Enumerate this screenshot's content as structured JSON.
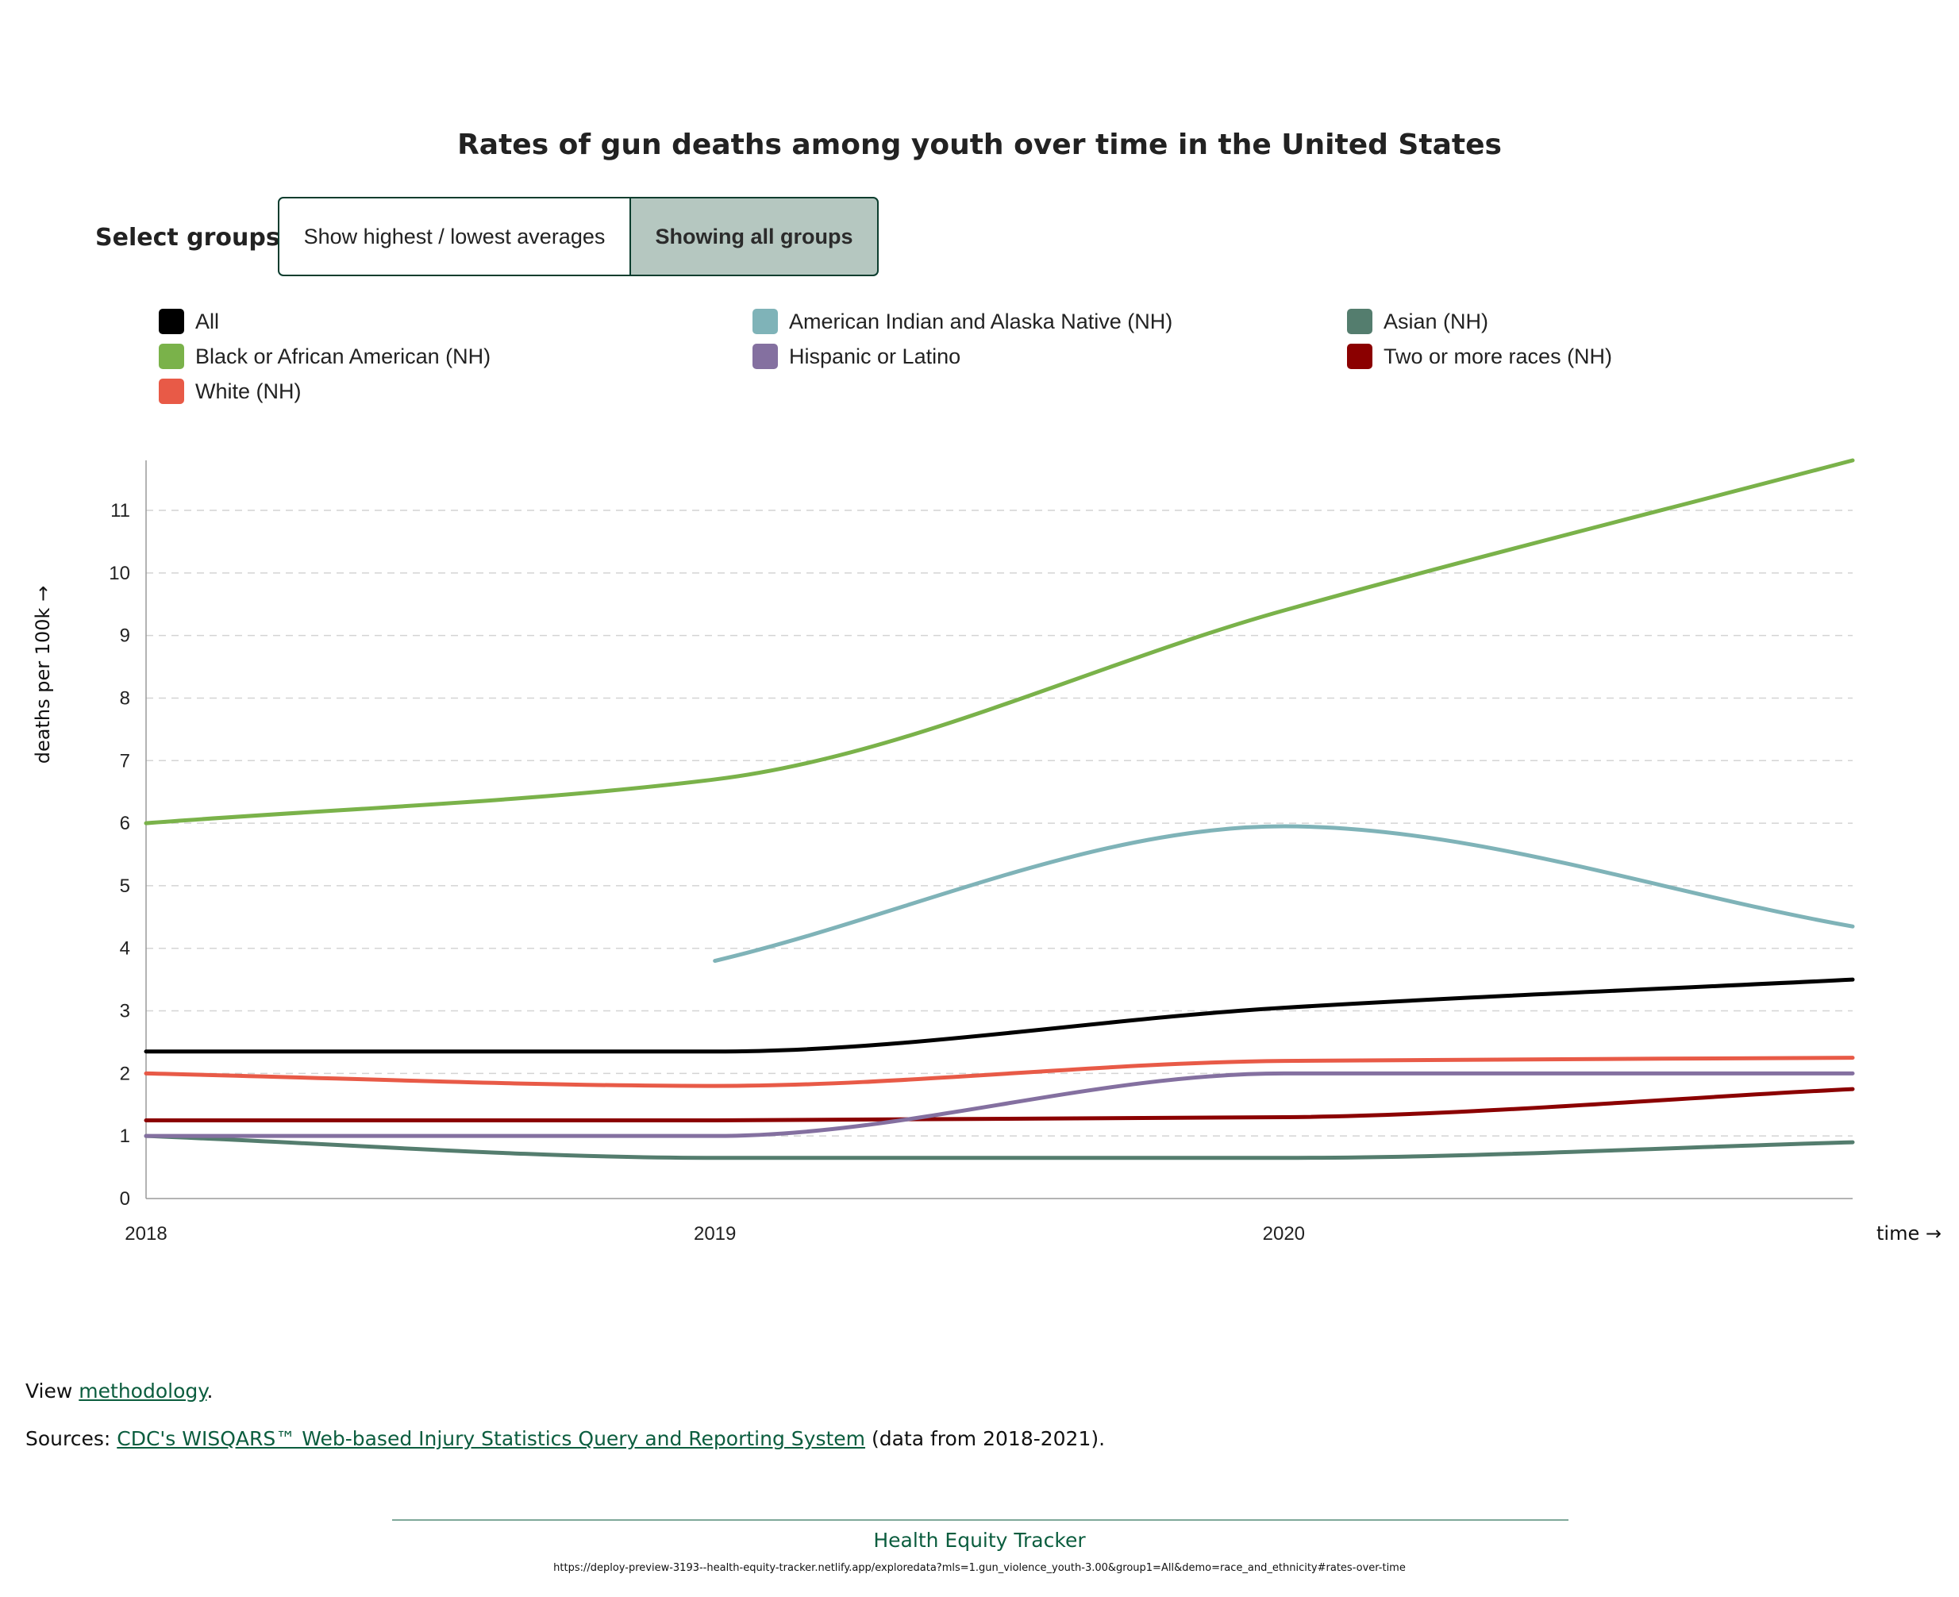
{
  "chart_data": {
    "type": "line",
    "title": "Rates of gun deaths among youth over time in the United States",
    "xlabel": "time →",
    "ylabel": "deaths per 100k →",
    "x": [
      2018,
      2019,
      2020,
      2021
    ],
    "x_ticks": [
      "2018",
      "2019",
      "2020"
    ],
    "xlim": [
      2018,
      2021
    ],
    "ylim": [
      0,
      11.8
    ],
    "y_ticks": [
      0,
      1,
      2,
      3,
      4,
      5,
      6,
      7,
      8,
      9,
      10,
      11
    ],
    "grid": true,
    "legend_position": "top",
    "series": [
      {
        "name": "All",
        "color": "#000000",
        "values": [
          2.35,
          2.35,
          3.05,
          3.5
        ]
      },
      {
        "name": "American Indian and Alaska Native (NH)",
        "color": "#7fb3b8",
        "values": [
          null,
          3.8,
          5.95,
          4.35
        ]
      },
      {
        "name": "Asian (NH)",
        "color": "#547d6e",
        "values": [
          1.0,
          0.65,
          0.65,
          0.9
        ]
      },
      {
        "name": "Black or African American (NH)",
        "color": "#7ab24a",
        "values": [
          6.0,
          6.7,
          9.4,
          11.8
        ]
      },
      {
        "name": "Hispanic or Latino",
        "color": "#8470a0",
        "values": [
          1.0,
          1.0,
          2.0,
          2.0
        ]
      },
      {
        "name": "Two or more races (NH)",
        "color": "#8b0000",
        "values": [
          1.25,
          1.25,
          1.3,
          1.75
        ]
      },
      {
        "name": "White (NH)",
        "color": "#e85a47",
        "values": [
          2.0,
          1.8,
          2.2,
          2.25
        ]
      }
    ]
  },
  "controls": {
    "label": "Select groups:",
    "highest_lowest": "Show highest / lowest averages",
    "all_groups": "Showing all groups"
  },
  "footer": {
    "view_prefix": "View ",
    "methodology_link": "methodology",
    "view_suffix": ".",
    "sources_prefix": "Sources: ",
    "sources_link": "CDC's WISQARS™ Web-based Injury Statistics Query and Reporting System",
    "sources_suffix": " (data from 2018-2021).",
    "brand": "Health Equity Tracker",
    "url": "https://deploy-preview-3193--health-equity-tracker.netlify.app/exploredata?mls=1.gun_violence_youth-3.00&group1=All&demo=race_and_ethnicity#rates-over-time"
  }
}
